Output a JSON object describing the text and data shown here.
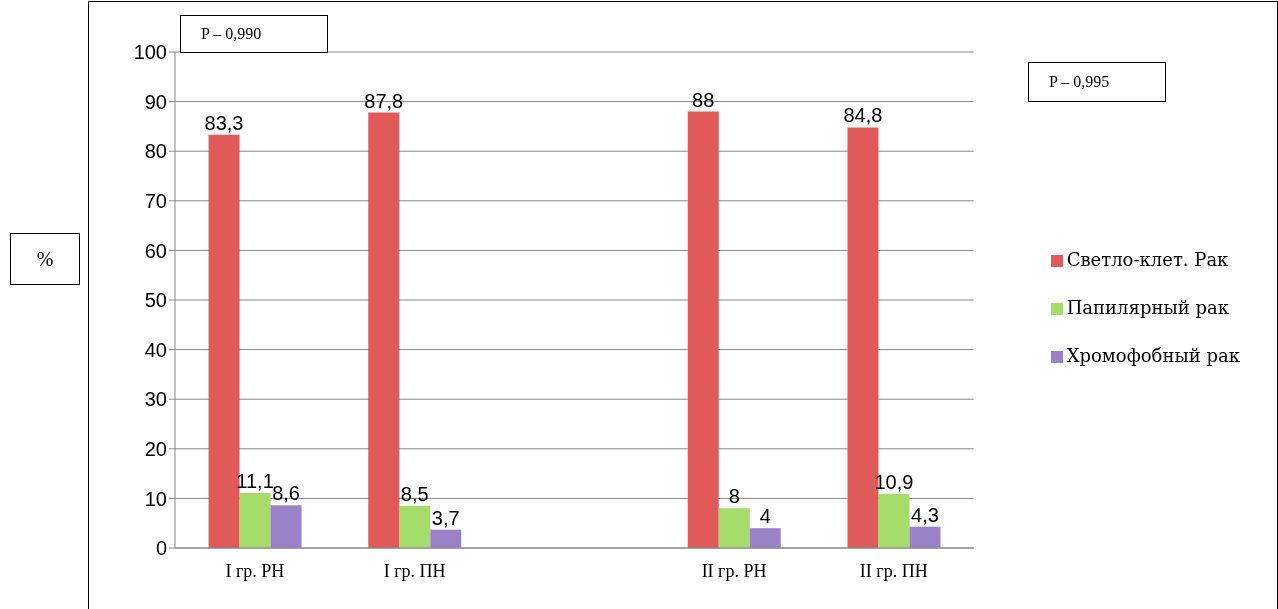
{
  "chart_data": {
    "type": "bar",
    "ylabel": "%",
    "categories": [
      "I гр. РН",
      "I гр. ПН",
      null,
      "II гр. РН",
      "II гр. ПН"
    ],
    "series": [
      {
        "name": "Светло-клет. Рак",
        "color": "#e05a5a",
        "values": [
          83.3,
          87.8,
          null,
          88,
          84.8
        ],
        "value_labels": [
          "83,3",
          "87,8",
          null,
          "88",
          "84,8"
        ]
      },
      {
        "name": "Папилярный рак",
        "color": "#a6dc6a",
        "values": [
          11.1,
          8.5,
          null,
          8,
          10.9
        ],
        "value_labels": [
          "11,1",
          "8,5",
          null,
          "8",
          "10,9"
        ]
      },
      {
        "name": "Хромофобный рак",
        "color": "#9a82c8",
        "values": [
          8.6,
          3.7,
          null,
          4,
          4.3
        ],
        "value_labels": [
          "8,6",
          "3,7",
          null,
          "4",
          "4,3"
        ]
      }
    ],
    "ylim": [
      0,
      100
    ],
    "yticks": [
      0,
      10,
      20,
      30,
      40,
      50,
      60,
      70,
      80,
      90,
      100
    ],
    "grid": "y",
    "legend": "right",
    "annotations": [
      "P – 0,990",
      "P – 0,995"
    ]
  }
}
